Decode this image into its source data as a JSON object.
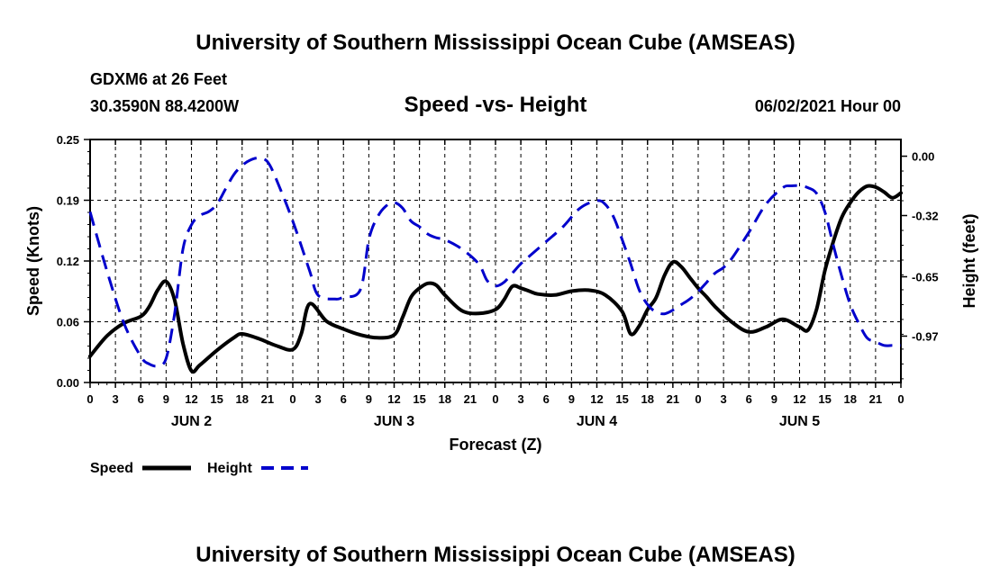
{
  "header": {
    "title_top": "University of Southern Mississippi Ocean Cube (AMSEAS)",
    "station": "GDXM6 at 26 Feet",
    "coords": "30.3590N  88.4200W",
    "chart_title": "Speed -vs- Height",
    "datetime": "06/02/2021 Hour 00"
  },
  "footer": {
    "title_bottom": "University of Southern Mississippi Ocean Cube (AMSEAS)"
  },
  "legend": {
    "speed_label": "Speed",
    "height_label": "Height"
  },
  "colors": {
    "speed": "#000000",
    "height": "#0000cc"
  },
  "chart_data": {
    "type": "line",
    "title": "Speed -vs- Height",
    "xlabel": "Forecast (Z)",
    "ylabel": "Speed (Knots)",
    "y2label": "Height (feet)",
    "x_hours_range": [
      0,
      96
    ],
    "x_tick_labels": [
      "0",
      "3",
      "6",
      "9",
      "12",
      "15",
      "18",
      "21",
      "0",
      "3",
      "6",
      "9",
      "12",
      "15",
      "18",
      "21",
      "0",
      "3",
      "6",
      "9",
      "12",
      "15",
      "18",
      "21",
      "0",
      "3",
      "6",
      "9",
      "12",
      "15",
      "18",
      "21",
      "0"
    ],
    "day_labels": [
      {
        "label": "JUN 2",
        "hour": 12
      },
      {
        "label": "JUN 3",
        "hour": 36
      },
      {
        "label": "JUN 4",
        "hour": 60
      },
      {
        "label": "JUN 5",
        "hour": 84
      }
    ],
    "ylim": [
      0,
      0.25
    ],
    "y_ticks": [
      "0.00",
      "0.06",
      "0.12",
      "0.19",
      "0.25"
    ],
    "y_tick_values": [
      0,
      0.0625,
      0.125,
      0.1875,
      0.25
    ],
    "y2lim": [
      -1.22,
      0.09
    ],
    "y2_ticks": [
      "0.00",
      "-0.32",
      "-0.65",
      "-0.97"
    ],
    "y2_tick_values": [
      0,
      -0.32,
      -0.65,
      -0.97
    ],
    "series": [
      {
        "name": "Speed",
        "axis": "left",
        "style": "solid",
        "x": [
          0,
          2,
          4,
          6,
          7,
          8,
          9,
          10,
          11,
          12,
          13,
          15,
          17,
          18,
          20,
          22,
          24,
          25,
          26,
          28,
          30,
          32,
          34,
          36,
          37,
          38,
          39,
          40,
          41,
          42,
          44,
          46,
          48,
          49,
          50,
          51,
          52,
          53,
          55,
          57,
          59,
          61,
          63,
          64,
          65,
          66,
          67,
          68,
          69,
          70,
          71,
          72,
          73,
          74,
          76,
          78,
          80,
          82,
          84,
          85,
          86,
          87,
          88,
          89,
          90,
          91,
          92,
          93,
          94,
          95,
          96
        ],
        "y": [
          0.027,
          0.048,
          0.061,
          0.068,
          0.078,
          0.095,
          0.104,
          0.085,
          0.04,
          0.012,
          0.018,
          0.033,
          0.046,
          0.05,
          0.045,
          0.038,
          0.034,
          0.05,
          0.081,
          0.063,
          0.055,
          0.049,
          0.046,
          0.049,
          0.067,
          0.088,
          0.097,
          0.102,
          0.1,
          0.09,
          0.074,
          0.071,
          0.075,
          0.085,
          0.099,
          0.097,
          0.094,
          0.091,
          0.09,
          0.094,
          0.095,
          0.09,
          0.073,
          0.05,
          0.058,
          0.075,
          0.087,
          0.11,
          0.124,
          0.119,
          0.108,
          0.097,
          0.088,
          0.078,
          0.062,
          0.052,
          0.057,
          0.065,
          0.057,
          0.054,
          0.075,
          0.115,
          0.145,
          0.17,
          0.185,
          0.196,
          0.202,
          0.201,
          0.196,
          0.19,
          0.195
        ]
      },
      {
        "name": "Height",
        "axis": "right",
        "style": "dashed",
        "x": [
          0,
          2,
          4,
          6,
          7,
          8,
          9,
          10,
          11,
          12,
          13,
          14,
          15,
          16,
          17,
          18,
          19,
          20,
          21,
          22,
          24,
          26,
          27,
          29,
          30,
          32,
          33,
          34,
          35,
          36,
          37,
          38,
          39,
          40,
          41,
          42,
          44,
          46,
          47,
          48,
          49,
          50,
          51,
          52,
          54,
          56,
          58,
          60,
          61,
          62,
          63,
          64,
          65,
          66,
          67,
          68,
          69,
          70,
          71,
          72,
          73,
          74,
          75,
          76,
          78,
          80,
          82,
          83,
          84,
          85,
          86,
          87,
          88,
          89,
          90,
          91,
          92,
          93,
          94,
          95,
          96
        ],
        "y": [
          -0.3,
          -0.62,
          -0.9,
          -1.08,
          -1.12,
          -1.13,
          -1.09,
          -0.85,
          -0.5,
          -0.37,
          -0.32,
          -0.3,
          -0.26,
          -0.18,
          -0.1,
          -0.05,
          -0.02,
          -0.01,
          -0.03,
          -0.12,
          -0.35,
          -0.62,
          -0.75,
          -0.77,
          -0.76,
          -0.72,
          -0.45,
          -0.33,
          -0.27,
          -0.25,
          -0.28,
          -0.35,
          -0.38,
          -0.42,
          -0.44,
          -0.45,
          -0.5,
          -0.58,
          -0.67,
          -0.7,
          -0.68,
          -0.63,
          -0.58,
          -0.54,
          -0.46,
          -0.38,
          -0.28,
          -0.24,
          -0.26,
          -0.33,
          -0.45,
          -0.58,
          -0.72,
          -0.8,
          -0.84,
          -0.85,
          -0.83,
          -0.8,
          -0.77,
          -0.73,
          -0.68,
          -0.63,
          -0.6,
          -0.55,
          -0.41,
          -0.26,
          -0.17,
          -0.16,
          -0.16,
          -0.17,
          -0.2,
          -0.3,
          -0.48,
          -0.65,
          -0.8,
          -0.9,
          -0.98,
          -1.0,
          -1.02,
          -1.02,
          -1.02
        ]
      }
    ]
  }
}
